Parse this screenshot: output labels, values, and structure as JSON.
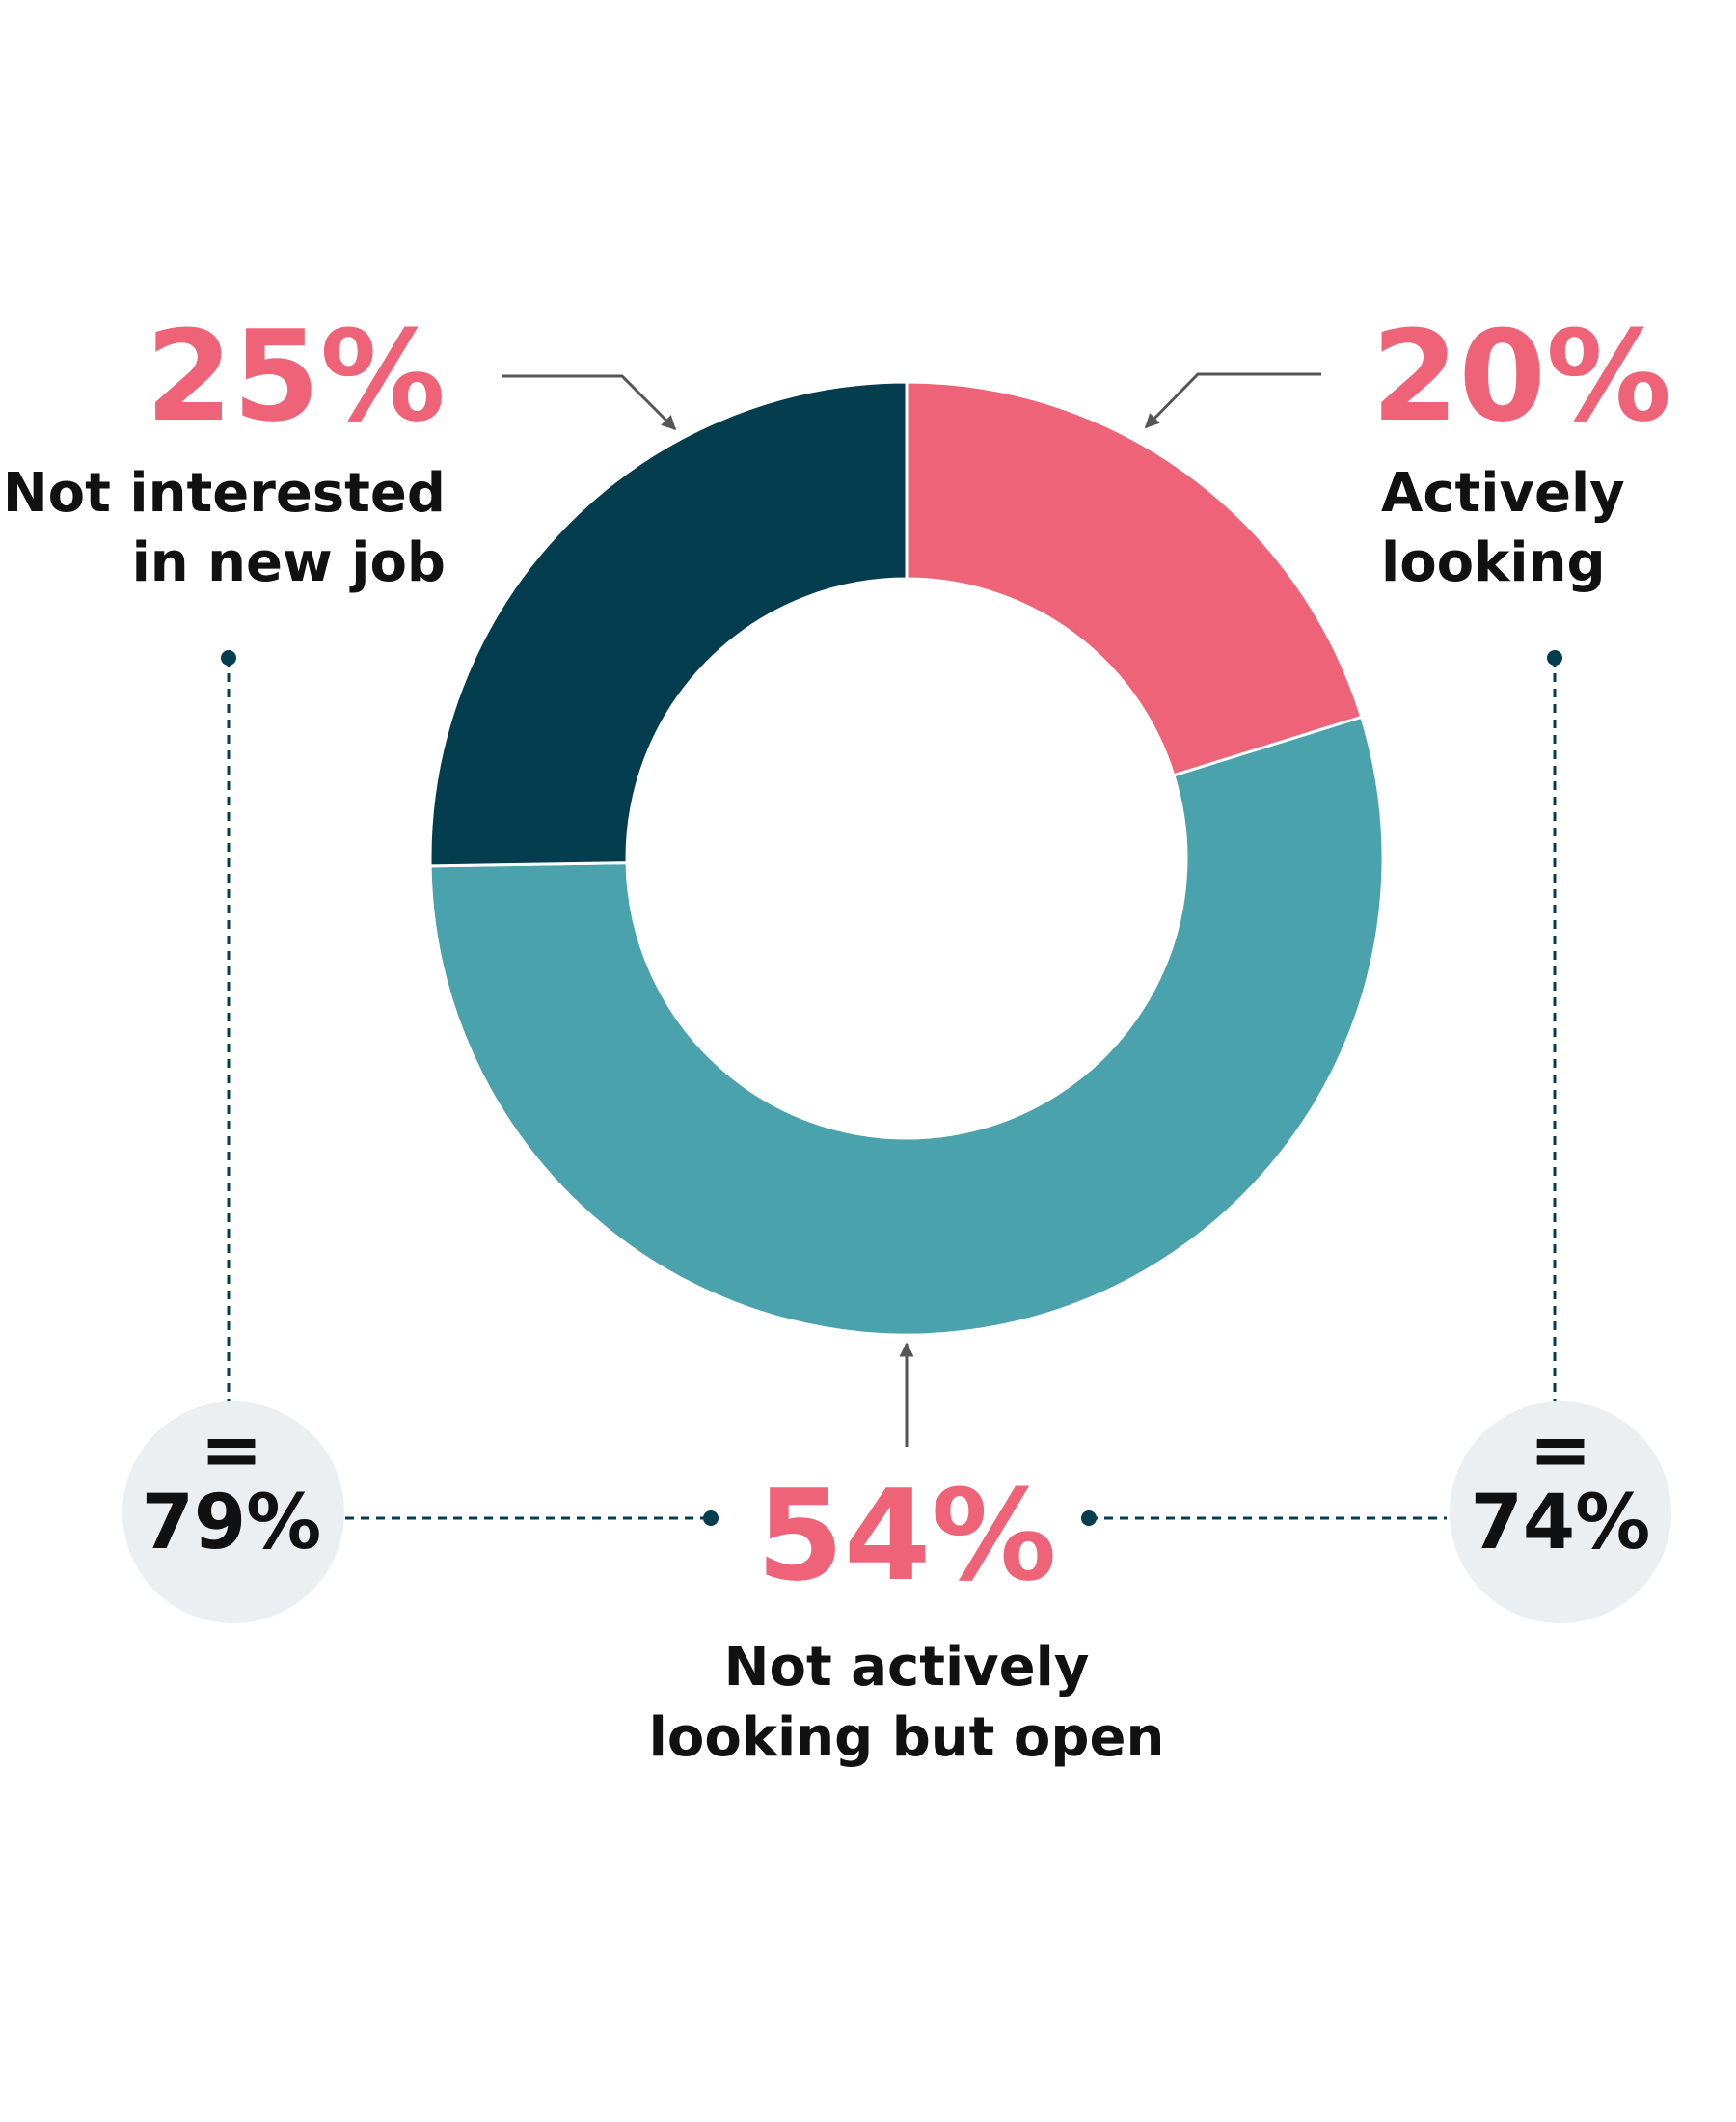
{
  "chart_data": {
    "type": "pie",
    "style": "donut",
    "title": "",
    "series": [
      {
        "label": "Actively looking",
        "value": 20,
        "display": "20%",
        "color": "#ef6379",
        "label_lines": [
          "Actively",
          "looking"
        ]
      },
      {
        "label": "Not actively looking but open",
        "value": 54,
        "display": "54%",
        "color": "#4aa2ad",
        "label_lines": [
          "Not actively",
          "looking but open"
        ]
      },
      {
        "label": "Not interested in new job",
        "value": 25,
        "display": "25%",
        "color": "#043d4e",
        "label_lines": [
          "Not interested",
          "in new job"
        ]
      }
    ],
    "totals": [
      {
        "equals": "=",
        "value": "79%",
        "combines": [
          "Not interested in new job",
          "Not actively looking but open"
        ]
      },
      {
        "equals": "=",
        "value": "74%",
        "combines": [
          "Not actively looking but open",
          "Actively looking"
        ]
      }
    ],
    "bubble_color": "#eceff2",
    "connector_color": "#043d4e",
    "arrow_color": "#555555"
  }
}
